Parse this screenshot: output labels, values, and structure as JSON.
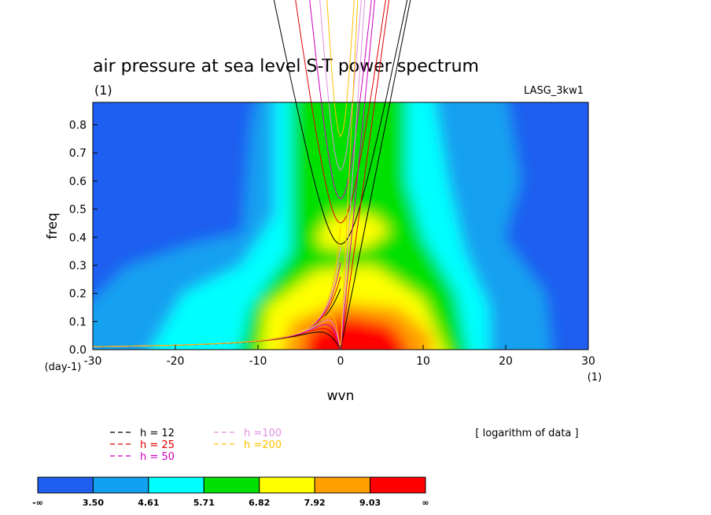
{
  "chart_data": {
    "type": "heatmap",
    "title": "air pressure at sea level S-T power spectrum",
    "title_unit": "(1)",
    "model_label": "LASG_3kw1",
    "xlabel": "wvn",
    "ylabel": "freq",
    "x_unit": "(1)",
    "y_unit": "(day-1)",
    "xlim": [
      -30,
      30
    ],
    "ylim": [
      0,
      0.88
    ],
    "x_ticks": [
      -30,
      -20,
      -10,
      0,
      10,
      20,
      30
    ],
    "x_tick_labels": [
      "-30",
      "-20",
      "-10",
      "0",
      "10",
      "20",
      "30"
    ],
    "y_ticks": [
      0.0,
      0.1,
      0.2,
      0.3,
      0.4,
      0.5,
      0.6,
      0.7,
      0.8
    ],
    "y_tick_labels": [
      "0.0",
      "0.1",
      "0.2",
      "0.3",
      "0.4",
      "0.5",
      "0.6",
      "0.7",
      "0.8"
    ],
    "note": "[ logarithm of data ]",
    "colorbar": {
      "colors": [
        "#1e5ef0",
        "#12a0f0",
        "#00ffff",
        "#00e000",
        "#ffff00",
        "#ffa000",
        "#ff0000"
      ],
      "levels": [
        3.5,
        4.61,
        5.71,
        6.82,
        7.92,
        9.03
      ],
      "labels": [
        "-∞",
        "3.50",
        "4.61",
        "5.71",
        "6.82",
        "7.92",
        "9.03",
        "∞"
      ]
    },
    "dispersion_curves": [
      {
        "label": "h = 12",
        "h": 12,
        "color": "#000000"
      },
      {
        "label": "h = 25",
        "h": 25,
        "color": "#e00000"
      },
      {
        "label": "h = 50",
        "h": 50,
        "color": "#d000c0"
      },
      {
        "label": "h =100",
        "h": 100,
        "color": "#e090e0"
      },
      {
        "label": "h =200",
        "h": 200,
        "color": "#ffc000"
      }
    ]
  }
}
